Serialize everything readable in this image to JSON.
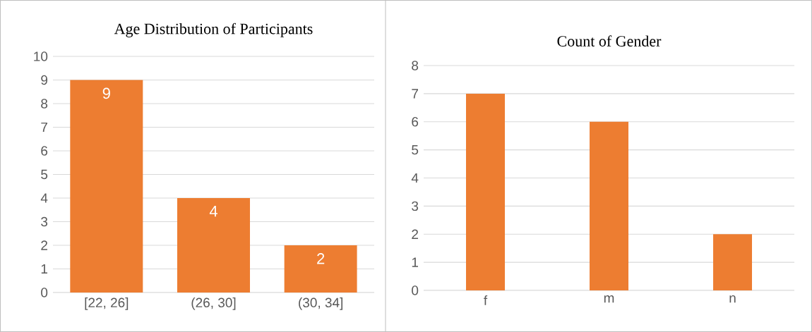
{
  "chart_data": [
    {
      "type": "bar",
      "title": "Age Distribution of Participants",
      "categories": [
        "[22, 26]",
        "(26, 30]",
        "(30, 34]"
      ],
      "values": [
        9,
        4,
        2
      ],
      "color": "#ed7d31",
      "ylim": [
        0,
        10
      ],
      "yticks": [
        0,
        1,
        2,
        3,
        4,
        5,
        6,
        7,
        8,
        9,
        10
      ],
      "grid": "y",
      "data_labels": true
    },
    {
      "type": "bar",
      "title": "Count of Gender",
      "categories": [
        "f",
        "m",
        "n"
      ],
      "values": [
        7,
        6,
        2
      ],
      "color": "#ed7d31",
      "ylim": [
        0,
        8
      ],
      "yticks": [
        0,
        1,
        2,
        3,
        4,
        5,
        6,
        7,
        8
      ],
      "grid": "y"
    }
  ]
}
